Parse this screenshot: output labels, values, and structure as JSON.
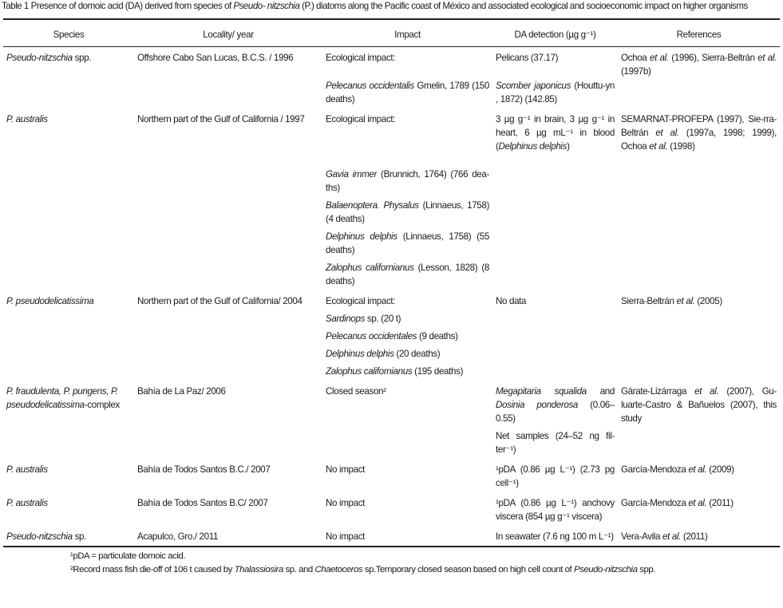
{
  "caption": [
    {
      "t": "Table 1 Presence of domoic acid (DA) derived from species of "
    },
    {
      "t": "Pseudo- nitzschia",
      "i": true
    },
    {
      "t": " (P.) diatoms along the Pacific coast of México and associated ecological and socioeconomic impact on higher organisms"
    }
  ],
  "headers": [
    "Species",
    "Locality/ year",
    "Impact",
    "DA detection (µg g⁻¹)",
    "References"
  ],
  "rows": [
    {
      "species": [
        {
          "t": "Pseudo-nitzschia",
          "i": true
        },
        {
          "t": " spp."
        }
      ],
      "locality": [
        {
          "t": "Offshore Cabo San Lucas, B.C.S. / 1996"
        }
      ],
      "references": [
        {
          "t": "Ochoa "
        },
        {
          "t": "et al.",
          "i": true
        },
        {
          "t": " (1996), Sierra-Beltrán "
        },
        {
          "t": "et al.",
          "i": true
        },
        {
          "t": " (1997b)"
        }
      ],
      "sub": [
        {
          "impact": [
            {
              "t": "Ecological impact:"
            }
          ],
          "da": [
            {
              "t": "Pelicans (37.17)"
            }
          ]
        },
        {
          "impact": [
            {
              "t": "Pelecanus occidentalis",
              "i": true
            },
            {
              "t": " Gmelin, 1789 (150 deaths)"
            }
          ],
          "da": [
            {
              "t": "Scomber japonicus",
              "i": true
            },
            {
              "t": " (Houttu-yn , 1872) (142.85)"
            }
          ]
        }
      ]
    },
    {
      "species": [
        {
          "t": "P. australis",
          "i": true
        }
      ],
      "locality": [
        {
          "t": "Northern part of the Gulf of California / 1997"
        }
      ],
      "references": [
        {
          "t": "SEMARNAT-PROFEPA (1997), Sie-rra-Beltrán "
        },
        {
          "t": "et al.",
          "i": true
        },
        {
          "t": " (1997a, 1998; 1999), Ochoa "
        },
        {
          "t": "et al.",
          "i": true
        },
        {
          "t": " (1998)"
        }
      ],
      "sub": [
        {
          "impact": [
            {
              "t": "Ecological impact:"
            }
          ],
          "da": [
            {
              "t": "3 µg g⁻¹ in brain, 3 µg g⁻¹ in heart, 6 µg mL⁻¹ in blood ("
            },
            {
              "t": "Delphinus delphis",
              "i": true
            },
            {
              "t": ")"
            }
          ]
        },
        {
          "impact": [
            {
              "t": "Gavia immer",
              "i": true
            },
            {
              "t": " (Brunnich, 1764) (766 dea-ths)"
            }
          ]
        },
        {
          "impact": [
            {
              "t": "Balaenoptera. Physalus",
              "i": true
            },
            {
              "t": " (Linnaeus, 1758) (4 deaths)"
            }
          ]
        },
        {
          "impact": [
            {
              "t": "Delphinus delphis",
              "i": true
            },
            {
              "t": " (Linnaeus, 1758) (55 deaths)"
            }
          ]
        },
        {
          "impact": [
            {
              "t": "Zalophus californianus",
              "i": true
            },
            {
              "t": " (Lesson, 1828) (8 deaths)"
            }
          ]
        }
      ]
    },
    {
      "species": [
        {
          "t": "P. pseudodelicatissima",
          "i": true
        }
      ],
      "locality": [
        {
          "t": "Northern part of the Gulf of California/ 2004"
        }
      ],
      "references": [
        {
          "t": "Sierra-Beltrán "
        },
        {
          "t": "et al.",
          "i": true
        },
        {
          "t": " (2005)"
        }
      ],
      "sub": [
        {
          "impact": [
            {
              "t": "Ecological impact:"
            }
          ],
          "da": [
            {
              "t": "No data"
            }
          ]
        },
        {
          "impact": [
            {
              "t": "Sardinops",
              "i": true
            },
            {
              "t": " sp. (20 t)"
            }
          ]
        },
        {
          "impact": [
            {
              "t": "Pelecanus occidentales",
              "i": true
            },
            {
              "t": " (9 deaths)"
            }
          ]
        },
        {
          "impact": [
            {
              "t": "Delphinus delphis",
              "i": true
            },
            {
              "t": " (20 deaths)"
            }
          ]
        },
        {
          "impact": [
            {
              "t": "Zalophus californianus",
              "i": true
            },
            {
              "t": " (195 deaths)"
            }
          ]
        }
      ]
    },
    {
      "species": [
        {
          "t": "P. fraudulenta, P. pungens, P. pseudodelicatissima",
          "i": true
        },
        {
          "t": "-complex"
        }
      ],
      "locality": [
        {
          "t": "Bahía de La Paz/ 2006"
        }
      ],
      "references": [
        {
          "t": "Gárate-Lizárraga "
        },
        {
          "t": "et al.",
          "i": true
        },
        {
          "t": " (2007), Gu-luarte-Castro & Bañuelos (2007), this study"
        }
      ],
      "sub": [
        {
          "impact": [
            {
              "t": "Closed season²"
            }
          ],
          "da": [
            {
              "t": "Megapitaria squalida",
              "i": true
            },
            {
              "t": " and "
            },
            {
              "t": "Dosinia ponderosa",
              "i": true
            },
            {
              "t": " (0.06–0.55)"
            }
          ]
        },
        {
          "da": [
            {
              "t": "Net samples (24–52 ng fil-ter⁻¹)"
            }
          ]
        }
      ]
    },
    {
      "species": [
        {
          "t": "P. australis",
          "i": true
        }
      ],
      "locality": [
        {
          "t": "Bahía de Todos Santos B.C./ 2007"
        }
      ],
      "references": [
        {
          "t": "García-Mendoza "
        },
        {
          "t": "et al.",
          "i": true
        },
        {
          "t": " (2009)"
        }
      ],
      "sub": [
        {
          "impact": [
            {
              "t": "No impact"
            }
          ],
          "da": [
            {
              "t": "¹pDA (0.86 µg L⁻¹) (2.73 pg cell⁻¹)"
            }
          ]
        }
      ]
    },
    {
      "species": [
        {
          "t": "P. australis",
          "i": true
        }
      ],
      "locality": [
        {
          "t": "Bahía de Todos Santos B.C/ 2007"
        }
      ],
      "references": [
        {
          "t": "García-Mendoza "
        },
        {
          "t": "et al.",
          "i": true
        },
        {
          "t": " (2011)"
        }
      ],
      "sub": [
        {
          "impact": [
            {
              "t": "No impact"
            }
          ],
          "da": [
            {
              "t": "¹pDA (0.86 µg L⁻¹) anchovy viscera (854 µg g⁻¹ viscera)"
            }
          ]
        }
      ]
    },
    {
      "species": [
        {
          "t": "Pseudo-nitzschia",
          "i": true
        },
        {
          "t": " sp."
        }
      ],
      "locality": [
        {
          "t": "Acapulco, Gro./ 2011"
        }
      ],
      "references": [
        {
          "t": "Vera-Avila "
        },
        {
          "t": "et al.",
          "i": true
        },
        {
          "t": " (2011)"
        }
      ],
      "sub": [
        {
          "impact": [
            {
              "t": "No impact"
            }
          ],
          "da": [
            {
              "t": "In seawater (7.6 ng 100 m L⁻¹)"
            }
          ]
        }
      ]
    }
  ],
  "footnotes": [
    [
      {
        "t": "¹pDA = particulate domoic acid."
      }
    ],
    [
      {
        "t": "²Record mass fish die-off of 106 t caused by "
      },
      {
        "t": "Thalassiosira",
        "i": true
      },
      {
        "t": " sp. and "
      },
      {
        "t": "Chaetoceros",
        "i": true
      },
      {
        "t": " sp.Temporary closed season based on high cell count of "
      },
      {
        "t": "Pseudo-nitzschia",
        "i": true
      },
      {
        "t": " spp."
      }
    ]
  ]
}
